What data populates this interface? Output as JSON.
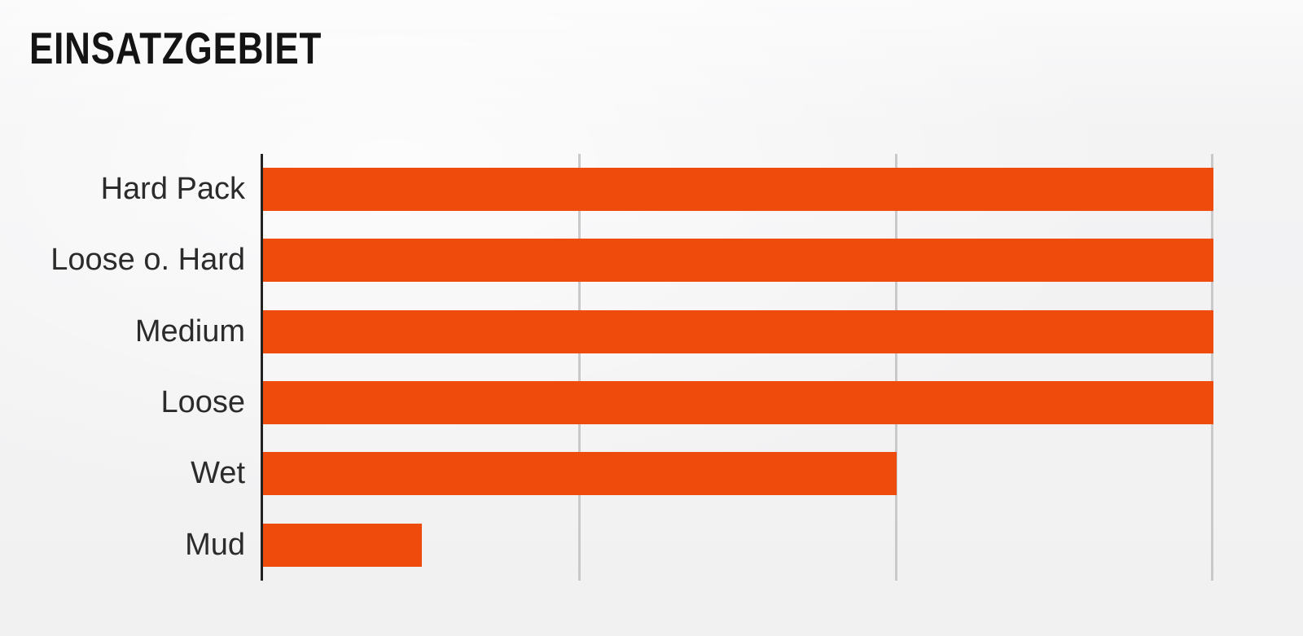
{
  "title": "EINSATZGEBIET",
  "colors": {
    "bar": "#ee4b0c",
    "axis": "#222222",
    "gridline": "#c9c9c9",
    "label_text": "#2b2b2b",
    "title_text": "#141414",
    "background": "#f2f2f3"
  },
  "chart_data": {
    "type": "bar",
    "orientation": "horizontal",
    "title": "EINSATZGEBIET",
    "categories": [
      "Hard Pack",
      "Loose o. Hard",
      "Medium",
      "Loose",
      "Wet",
      "Mud"
    ],
    "values": [
      6,
      6,
      6,
      6,
      4,
      1
    ],
    "xlabel": "",
    "ylabel": "",
    "xlim": [
      0,
      6
    ],
    "gridline_values": [
      2,
      4,
      6
    ],
    "grid": "vertical-only",
    "legend": "none",
    "value_labels": "none",
    "bar_color": "#ee4b0c"
  }
}
